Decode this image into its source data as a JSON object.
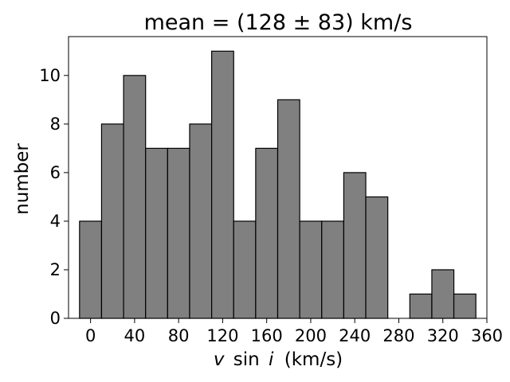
{
  "chart_data": {
    "type": "bar",
    "title": "mean = (128 ± 83) km/s",
    "xlabel_italic_v": "v",
    "xlabel_sin": "sin",
    "xlabel_italic_i": "i",
    "xlabel_units": "(km/s)",
    "ylabel": "number",
    "xlim": [
      -20,
      360
    ],
    "ylim": [
      0,
      11.6
    ],
    "bin_width": 20,
    "bins": [
      {
        "left": -10,
        "count": 4
      },
      {
        "left": 10,
        "count": 8
      },
      {
        "left": 30,
        "count": 10
      },
      {
        "left": 50,
        "count": 7
      },
      {
        "left": 70,
        "count": 7
      },
      {
        "left": 90,
        "count": 8
      },
      {
        "left": 110,
        "count": 11
      },
      {
        "left": 130,
        "count": 4
      },
      {
        "left": 150,
        "count": 7
      },
      {
        "left": 170,
        "count": 9
      },
      {
        "left": 190,
        "count": 4
      },
      {
        "left": 210,
        "count": 4
      },
      {
        "left": 230,
        "count": 6
      },
      {
        "left": 250,
        "count": 5
      },
      {
        "left": 270,
        "count": 0
      },
      {
        "left": 290,
        "count": 1
      },
      {
        "left": 310,
        "count": 2
      },
      {
        "left": 330,
        "count": 1
      }
    ],
    "xticks": [
      0,
      40,
      80,
      120,
      160,
      200,
      240,
      280,
      320,
      360
    ],
    "yticks": [
      0,
      2,
      4,
      6,
      8,
      10
    ],
    "bar_color": "#808080",
    "edge_color": "#000000",
    "grid": false
  }
}
